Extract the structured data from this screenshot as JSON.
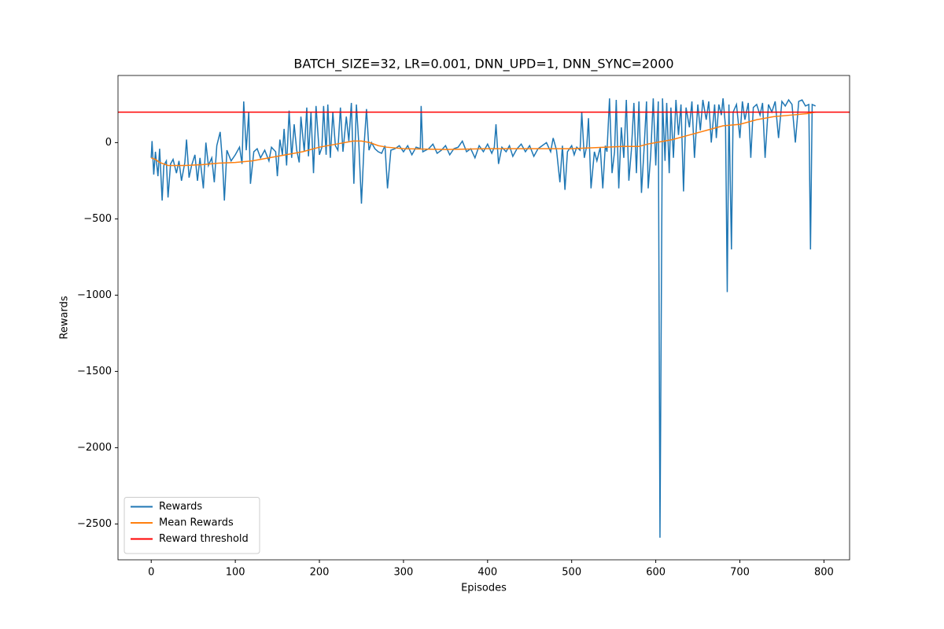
{
  "chart_data": {
    "type": "line",
    "title": "BATCH_SIZE=32, LR=0.001, DNN_UPD=1, DNN_SYNC=2000",
    "x_label": "Episodes",
    "y_label": "Rewards",
    "xlim": [
      -39.5,
      830.5
    ],
    "ylim": [
      -2735,
      440
    ],
    "xticks": [
      0,
      100,
      200,
      300,
      400,
      500,
      600,
      700,
      800
    ],
    "yticks": [
      {
        "value": -2500,
        "label": "−2500"
      },
      {
        "value": -2000,
        "label": "−2000"
      },
      {
        "value": -1500,
        "label": "−1500"
      },
      {
        "value": -1000,
        "label": "−1000"
      },
      {
        "value": -500,
        "label": "−500"
      },
      0
    ],
    "legend": "lower left",
    "series": [
      {
        "name": "Rewards",
        "color": "#1f77b4",
        "x": [
          0,
          1,
          3,
          5,
          8,
          10,
          13,
          15,
          18,
          20,
          23,
          26,
          30,
          33,
          36,
          40,
          42,
          45,
          48,
          52,
          55,
          58,
          62,
          65,
          68,
          72,
          75,
          78,
          82,
          85,
          87,
          90,
          95,
          100,
          105,
          108,
          110,
          113,
          116,
          118,
          122,
          126,
          130,
          135,
          140,
          143,
          148,
          150,
          153,
          156,
          158,
          161,
          164,
          167,
          170,
          173,
          176,
          178,
          182,
          185,
          187,
          190,
          193,
          196,
          200,
          203,
          205,
          208,
          210,
          213,
          216,
          219,
          222,
          225,
          228,
          232,
          235,
          238,
          241,
          244,
          247,
          250,
          253,
          256,
          259,
          262,
          266,
          270,
          274,
          278,
          281,
          285,
          290,
          295,
          300,
          305,
          310,
          315,
          320,
          321,
          323,
          330,
          335,
          340,
          345,
          350,
          355,
          360,
          365,
          370,
          375,
          380,
          385,
          390,
          395,
          400,
          405,
          408,
          410,
          413,
          417,
          422,
          426,
          430,
          435,
          440,
          445,
          450,
          455,
          460,
          465,
          470,
          475,
          478,
          482,
          486,
          489,
          492,
          495,
          500,
          503,
          506,
          510,
          512,
          515,
          518,
          520,
          523,
          527,
          530,
          534,
          537,
          540,
          542,
          545,
          548,
          551,
          553,
          556,
          559,
          562,
          565,
          568,
          571,
          574,
          577,
          580,
          583,
          586,
          589,
          591,
          594,
          597,
          600,
          603,
          605,
          608,
          611,
          613,
          616,
          618,
          621,
          624,
          627,
          630,
          633,
          636,
          640,
          643,
          646,
          650,
          653,
          656,
          660,
          663,
          666,
          670,
          672,
          675,
          678,
          680,
          683,
          685,
          687,
          690,
          692,
          696,
          700,
          703,
          706,
          710,
          713,
          716,
          720,
          724,
          727,
          730,
          734,
          738,
          742,
          746,
          750,
          754,
          758,
          762,
          766,
          770,
          774,
          778,
          782,
          784,
          786,
          790
        ],
        "values": [
          -100,
          10,
          -210,
          -60,
          -220,
          -40,
          -380,
          -150,
          -120,
          -360,
          -140,
          -110,
          -200,
          -120,
          -250,
          -130,
          20,
          -230,
          -150,
          -80,
          -250,
          -100,
          -300,
          0,
          -150,
          -100,
          -260,
          -20,
          70,
          -150,
          -380,
          -50,
          -120,
          -80,
          -30,
          -140,
          270,
          -50,
          200,
          -270,
          -60,
          -40,
          -100,
          -50,
          -120,
          -30,
          -60,
          -220,
          20,
          -80,
          90,
          -150,
          210,
          -100,
          120,
          -50,
          -130,
          170,
          -60,
          230,
          -90,
          200,
          -200,
          240,
          -80,
          -30,
          240,
          -80,
          250,
          -100,
          200,
          -20,
          -50,
          230,
          -60,
          170,
          10,
          260,
          -270,
          250,
          -20,
          -400,
          -30,
          220,
          -50,
          0,
          -40,
          -60,
          -70,
          -20,
          -300,
          -50,
          -40,
          -20,
          -60,
          -20,
          -80,
          -30,
          -40,
          240,
          -60,
          -40,
          -10,
          -70,
          -50,
          -20,
          -80,
          -40,
          -30,
          10,
          -60,
          -40,
          -100,
          -20,
          -60,
          -10,
          -70,
          -30,
          120,
          -140,
          -30,
          -60,
          -20,
          -90,
          -40,
          -10,
          -60,
          -20,
          -90,
          -40,
          -20,
          0,
          -60,
          30,
          -50,
          -260,
          -20,
          -310,
          -60,
          -20,
          -80,
          -30,
          -50,
          200,
          -100,
          -20,
          160,
          -300,
          -60,
          -120,
          -30,
          -300,
          -20,
          -60,
          290,
          -200,
          -60,
          280,
          -300,
          100,
          -100,
          280,
          -250,
          -50,
          260,
          -200,
          270,
          -330,
          -50,
          270,
          -300,
          -80,
          290,
          -150,
          270,
          -2590,
          290,
          -120,
          260,
          -200,
          230,
          -100,
          280,
          50,
          250,
          -320,
          230,
          100,
          270,
          -100,
          250,
          80,
          280,
          150,
          270,
          0,
          250,
          30,
          250,
          180,
          290,
          100,
          -980,
          250,
          -700,
          200,
          250,
          30,
          270,
          150,
          260,
          -100,
          230,
          250,
          180,
          260,
          -100,
          250,
          200,
          270,
          30,
          270,
          240,
          280,
          250,
          0,
          270,
          280,
          240,
          250,
          -700,
          250,
          240
        ]
      },
      {
        "name": "Mean Rewards",
        "color": "#ff7f0e",
        "x": [
          0,
          5,
          10,
          20,
          40,
          60,
          80,
          100,
          110,
          120,
          140,
          160,
          180,
          200,
          220,
          240,
          250,
          260,
          270,
          280,
          300,
          350,
          400,
          450,
          500,
          540,
          560,
          580,
          590,
          600,
          620,
          640,
          660,
          680,
          700,
          720,
          740,
          760,
          780,
          790
        ],
        "values": [
          -100,
          -110,
          -130,
          -150,
          -150,
          -145,
          -135,
          -130,
          -125,
          -120,
          -100,
          -80,
          -60,
          -30,
          -10,
          10,
          10,
          0,
          -20,
          -30,
          -40,
          -45,
          -40,
          -40,
          -40,
          -30,
          -25,
          -25,
          -10,
          0,
          20,
          50,
          80,
          110,
          120,
          150,
          170,
          180,
          190,
          200
        ]
      }
    ],
    "hlines": [
      {
        "name": "Reward threshold",
        "color": "#ff0000",
        "y": 200
      }
    ]
  }
}
